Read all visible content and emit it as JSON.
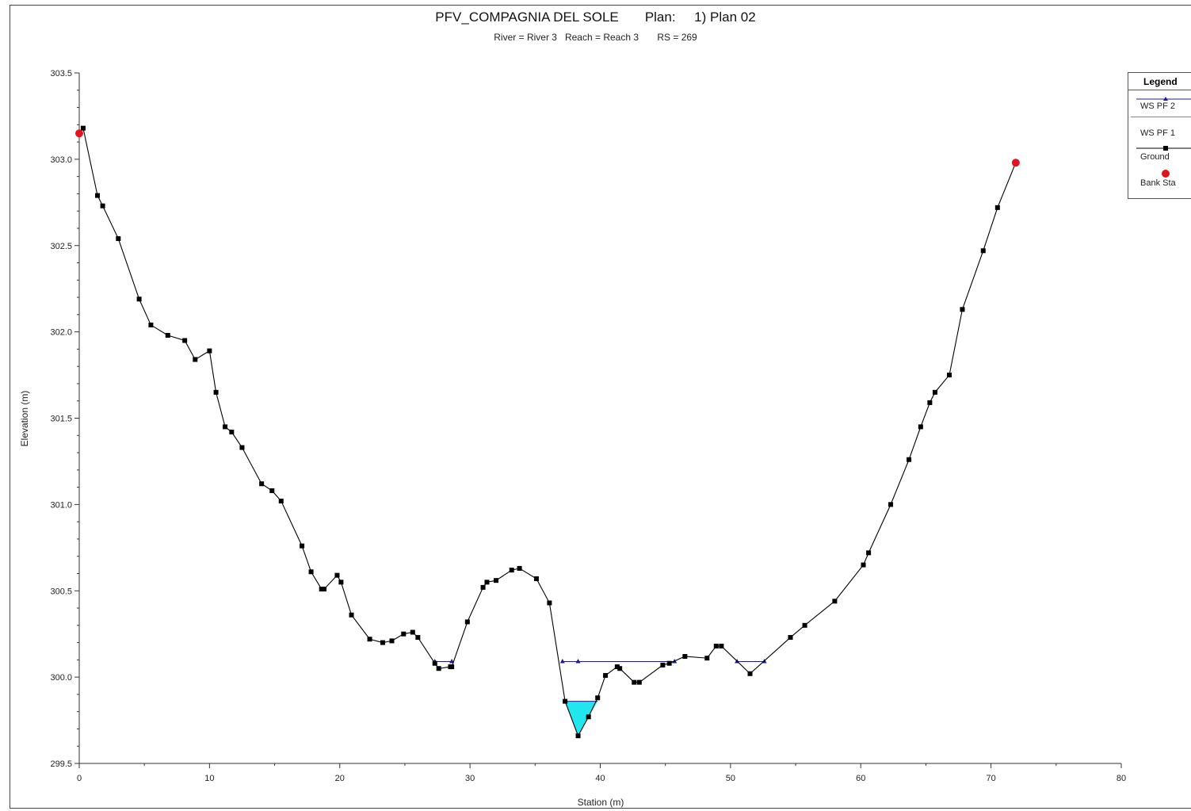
{
  "chart_data": {
    "type": "line",
    "title": "PFV_COMPAGNIA DEL SOLE       Plan:     1) Plan 02",
    "subtitle": "River = River 3   Reach = Reach 3       RS = 269",
    "xlabel": "Station (m)",
    "ylabel": "Elevation (m)",
    "xlim": [
      0,
      80
    ],
    "ylim": [
      299.5,
      303.5
    ],
    "x_ticks": [
      "0",
      "10",
      "20",
      "30",
      "40",
      "50",
      "60",
      "70",
      "80"
    ],
    "y_ticks": [
      "299.5",
      "300.0",
      "300.5",
      "301.0",
      "301.5",
      "302.0",
      "302.5",
      "303.0",
      "303.5"
    ],
    "grid": false,
    "legend_position": "top-right",
    "legend_title": "Legend",
    "colors": {
      "ground": "#000000",
      "ws_line": "#1c1c8c",
      "water_fill": "#22e6ee",
      "bank": "#e0141e"
    },
    "series": [
      {
        "name": "Ground",
        "x": [
          0,
          0.3,
          1.4,
          1.8,
          3.0,
          4.6,
          5.5,
          6.8,
          8.1,
          8.9,
          10.0,
          10.5,
          11.2,
          11.7,
          12.5,
          14.0,
          14.8,
          15.5,
          17.1,
          17.8,
          18.6,
          18.8,
          19.8,
          20.1,
          20.9,
          22.3,
          23.3,
          24.0,
          24.9,
          25.6,
          26.0,
          27.3,
          27.6,
          28.5,
          28.6,
          29.8,
          31.0,
          31.3,
          32.0,
          33.2,
          33.8,
          35.1,
          36.1,
          37.3,
          38.3,
          39.1,
          39.8,
          40.4,
          41.3,
          41.5,
          42.6,
          43.0,
          44.8,
          45.3,
          46.5,
          48.2,
          48.9,
          49.3,
          51.5,
          54.6,
          55.7,
          58.0,
          60.2,
          60.6,
          62.3,
          63.7,
          64.6,
          65.3,
          65.7,
          66.8,
          67.8,
          69.4,
          70.5,
          71.9
        ],
        "y": [
          303.15,
          303.18,
          302.79,
          302.73,
          302.54,
          302.19,
          302.04,
          301.98,
          301.95,
          301.84,
          301.89,
          301.65,
          301.45,
          301.42,
          301.33,
          301.12,
          301.08,
          301.02,
          300.76,
          300.61,
          300.51,
          300.51,
          300.59,
          300.55,
          300.36,
          300.22,
          300.2,
          300.21,
          300.25,
          300.26,
          300.23,
          300.08,
          300.05,
          300.06,
          300.06,
          300.32,
          300.52,
          300.55,
          300.56,
          300.62,
          300.63,
          300.57,
          300.43,
          299.86,
          299.66,
          299.77,
          299.88,
          300.01,
          300.06,
          300.05,
          299.97,
          299.97,
          300.07,
          300.08,
          300.12,
          300.11,
          300.18,
          300.18,
          300.02,
          300.23,
          300.3,
          300.44,
          300.65,
          300.72,
          301.0,
          301.26,
          301.45,
          301.59,
          301.65,
          301.75,
          302.13,
          302.47,
          302.72,
          302.98
        ]
      },
      {
        "name": "WS PF 2",
        "segments": [
          {
            "x": [
              27.3,
              28.6
            ],
            "y": [
              300.09,
              300.09
            ]
          },
          {
            "x": [
              37.1,
              45.7
            ],
            "y": [
              300.09,
              300.09
            ]
          },
          {
            "x": [
              50.5,
              52.6
            ],
            "y": [
              300.09,
              300.09
            ]
          }
        ],
        "markers_x": [
          27.3,
          28.6,
          37.1,
          38.3,
          45.7,
          50.5,
          52.6
        ]
      },
      {
        "name": "WS PF 1",
        "segments": [
          {
            "x": [
              37.3,
              39.8
            ],
            "y": [
              299.86,
              299.86
            ]
          }
        ]
      },
      {
        "name": "Bank Sta",
        "x": [
          0,
          71.9
        ],
        "y": [
          303.15,
          302.98
        ]
      }
    ]
  },
  "legend": {
    "title": "Legend",
    "items": [
      "WS PF 2",
      "WS PF 1",
      "Ground",
      "Bank Sta"
    ]
  }
}
